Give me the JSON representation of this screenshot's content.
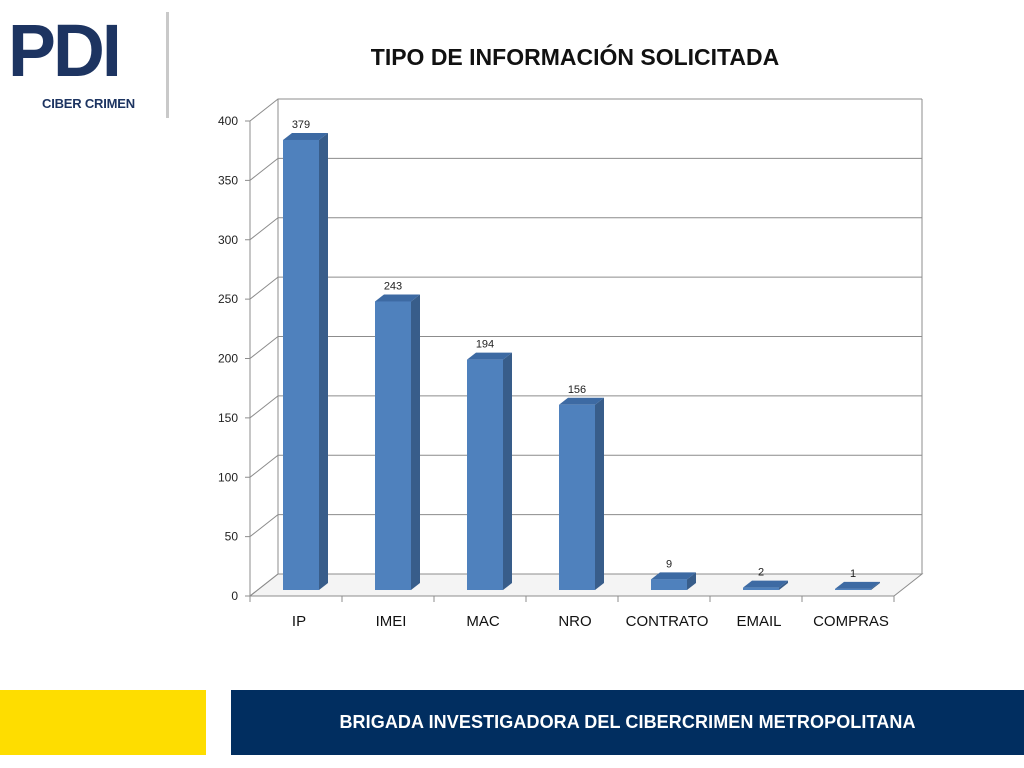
{
  "logo": {
    "mark": "PDI",
    "subtitle": "CIBER CRIMEN"
  },
  "footer": {
    "text": "BRIGADA INVESTIGADORA DEL CIBERCRIMEN METROPOLITANA"
  },
  "colors": {
    "bar_front": "#4f81bd",
    "bar_side": "#385d8a",
    "bar_top": "#3d6aa3",
    "footer_yellow": "#fedd00",
    "footer_blue": "#012e60",
    "logo_blue": "#1d3461"
  },
  "chart_data": {
    "type": "bar",
    "title": "TIPO DE INFORMACIÓN SOLICITADA",
    "categories": [
      "IP",
      "IMEI",
      "MAC",
      "NRO",
      "CONTRATO",
      "EMAIL",
      "COMPRAS"
    ],
    "values": [
      379,
      243,
      194,
      156,
      9,
      2,
      1
    ],
    "data_labels": [
      "379",
      "243",
      "194",
      "156",
      "9",
      "2",
      "1"
    ],
    "yticks": [
      0,
      50,
      100,
      150,
      200,
      250,
      300,
      350,
      400
    ],
    "ylim": [
      0,
      400
    ],
    "xlabel": "",
    "ylabel": "",
    "grid": true,
    "legend": "none",
    "style": "3d-column"
  }
}
